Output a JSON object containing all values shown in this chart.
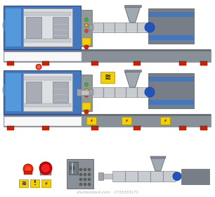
{
  "bg": "#ffffff",
  "blue": "#4477bb",
  "blue_light": "#5599dd",
  "gray_base": "#8a9098",
  "gray_dark": "#6a7078",
  "gray_med": "#aab0b8",
  "gray_light": "#c8ccd0",
  "gray_panel": "#909898",
  "gray_inj": "#787e88",
  "silver": "#b8bcc0",
  "yellow": "#f5d000",
  "red": "#cc2200",
  "blue_ring": "#2255bb",
  "white": "#f8f8f8",
  "dark": "#404850"
}
